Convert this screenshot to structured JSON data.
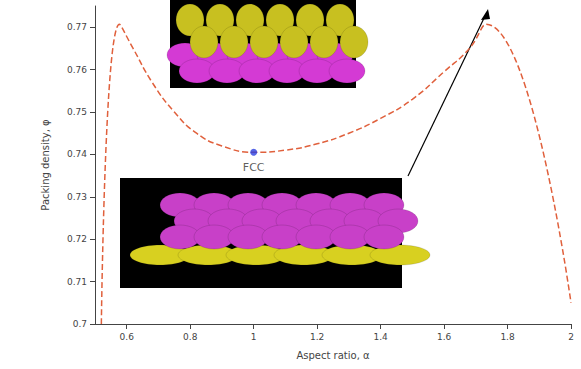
{
  "chart_data": {
    "type": "line",
    "x_label": "Aspect ratio, α",
    "y_label": "Packing density, φ",
    "x": [
      0.52,
      0.577,
      0.62,
      0.68,
      0.75,
      0.82,
      0.9,
      1.0,
      1.1,
      1.2,
      1.3,
      1.4,
      1.5,
      1.6,
      1.68,
      1.732,
      2.0
    ],
    "values": [
      0.7,
      0.7707,
      0.765,
      0.757,
      0.75,
      0.745,
      0.742,
      0.7405,
      0.741,
      0.7425,
      0.745,
      0.7485,
      0.753,
      0.7595,
      0.765,
      0.7707,
      0.705
    ],
    "color": "#e0603c",
    "line_style": "dashed",
    "marker": "none",
    "annotations": [
      {
        "text": "FCC",
        "x": 1.0,
        "y": 0.7405,
        "color": "#2a3fe0"
      }
    ],
    "xlim": [
      0.5,
      2.0
    ],
    "xticks": [
      0.6,
      0.8,
      1.0,
      1.2,
      1.4,
      1.6,
      1.8,
      2.0
    ],
    "ylim": [
      0.7,
      0.775
    ],
    "yticks": [
      0.7,
      0.71,
      0.72,
      0.73,
      0.74,
      0.75,
      0.76,
      0.77
    ],
    "grid": false
  }
}
